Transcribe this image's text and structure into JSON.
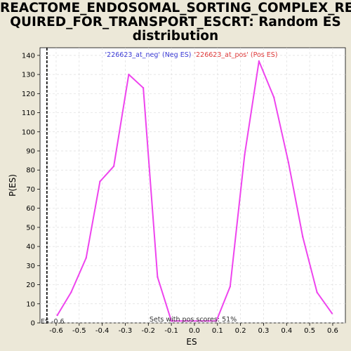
{
  "chart_data": {
    "type": "line",
    "title": "REACTOME_ENDOSOMAL_SORTING_COMPLEX_REQUIRED_FOR_TRANSPORT_ESCRT: Random ES distribution",
    "xlabel": "ES",
    "ylabel": "P(ES)",
    "xlim": [
      -0.67,
      0.655
    ],
    "ylim": [
      0,
      144
    ],
    "xticks": [
      -0.6,
      -0.5,
      -0.4,
      -0.3,
      -0.2,
      -0.1,
      0.0,
      0.1,
      0.2,
      0.3,
      0.4,
      0.5,
      0.6
    ],
    "yticks": [
      0,
      10,
      20,
      30,
      40,
      50,
      60,
      70,
      80,
      90,
      100,
      110,
      120,
      130,
      140
    ],
    "grid": true,
    "series": [
      {
        "name": "random ES",
        "color": "#ee44ee",
        "x": [
          -0.595,
          -0.535,
          -0.47,
          -0.41,
          -0.35,
          -0.285,
          -0.222,
          -0.16,
          -0.1,
          0.095,
          0.155,
          0.218,
          0.28,
          0.345,
          0.408,
          0.47,
          0.532,
          0.597
        ],
        "y": [
          4,
          16,
          34,
          74,
          82,
          130,
          123,
          24,
          1,
          1,
          19,
          88,
          137,
          118,
          84,
          45,
          16,
          5
        ]
      }
    ],
    "es_line": {
      "x": -0.64,
      "label": "ES -0.6"
    },
    "legend": {
      "neg": "'226623_at_neg' (Neg ES)",
      "pos": "'226623_at_pos' (Pos ES)",
      "neg_color": "#3b3bd6",
      "pos_color": "#e03a3a"
    },
    "annotation": "Sets with pos scores: 51%"
  }
}
